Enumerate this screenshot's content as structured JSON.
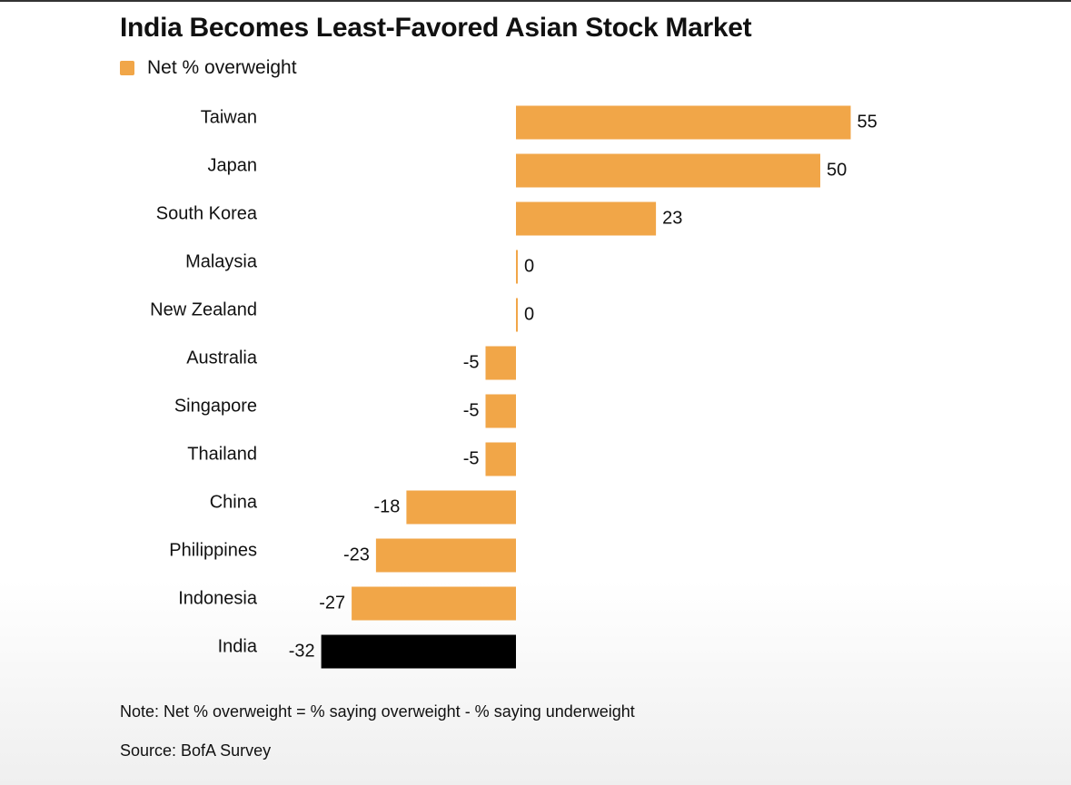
{
  "colors": {
    "bar": "#f1a648",
    "highlight": "#000000",
    "text": "#111111"
  },
  "legend_label": "Net % overweight",
  "note": "Note: Net % overweight = % saying overweight - % saying underweight",
  "source": "Source: BofA Survey",
  "chart_data": {
    "type": "bar",
    "orientation": "horizontal",
    "title": "India Becomes Least-Favored Asian Stock Market",
    "xlabel": "",
    "ylabel": "",
    "categories": [
      "Taiwan",
      "Japan",
      "South Korea",
      "Malaysia",
      "New Zealand",
      "Australia",
      "Singapore",
      "Thailand",
      "China",
      "Philippines",
      "Indonesia",
      "India"
    ],
    "series": [
      {
        "name": "Net % overweight",
        "values": [
          55,
          50,
          23,
          0,
          0,
          -5,
          -5,
          -5,
          -18,
          -23,
          -27,
          -32
        ]
      }
    ],
    "highlight": "India",
    "xlim": [
      -32,
      55
    ],
    "grid": false,
    "legend": "top-left"
  }
}
